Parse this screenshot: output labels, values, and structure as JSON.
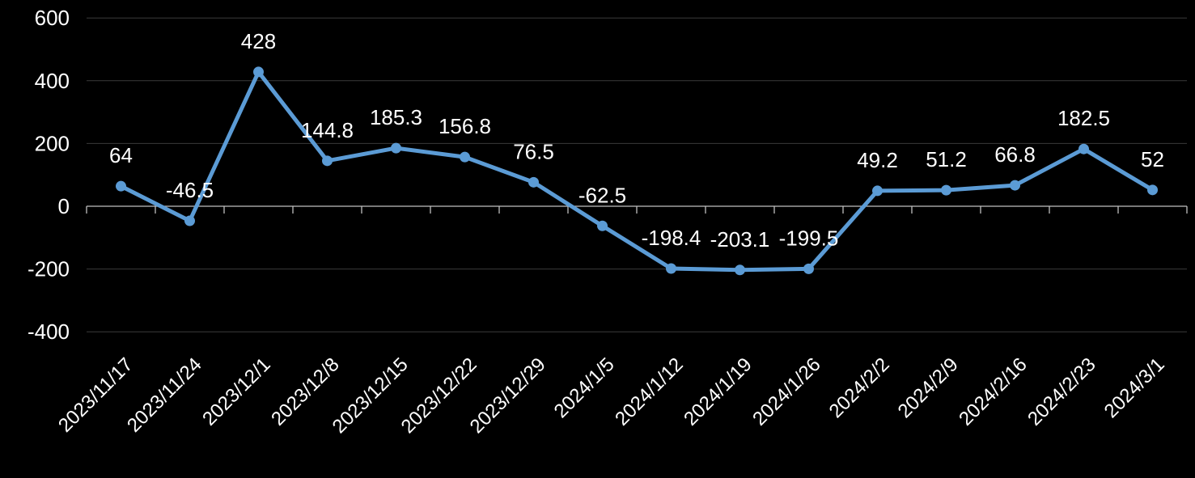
{
  "chart_data": {
    "type": "line",
    "title": "",
    "xlabel": "",
    "ylabel": "",
    "ylim": [
      -400,
      600
    ],
    "yticks": [
      "600",
      "400",
      "200",
      "0",
      "-200",
      "-400"
    ],
    "ytick_values": [
      600,
      400,
      200,
      0,
      -200,
      -400
    ],
    "categories": [
      "2023/11/17",
      "2023/11/24",
      "2023/12/1",
      "2023/12/8",
      "2023/12/15",
      "2023/12/22",
      "2023/12/29",
      "2024/1/5",
      "2024/1/12",
      "2024/1/19",
      "2024/1/26",
      "2024/2/2",
      "2024/2/9",
      "2024/2/16",
      "2024/2/23",
      "2024/3/1"
    ],
    "series": [
      {
        "values": [
          64,
          -46.5,
          428,
          144.8,
          185.3,
          156.8,
          76.5,
          -62.5,
          -198.4,
          -203.1,
          -199.5,
          49.2,
          51.2,
          66.8,
          182.5,
          52
        ],
        "labels": [
          "64",
          "-46.5",
          "428",
          "144.8",
          "185.3",
          "156.8",
          "76.5",
          "-62.5",
          "-198.4",
          "-203.1",
          "-199.5",
          "49.2",
          "51.2",
          "66.8",
          "182.5",
          "52"
        ],
        "color": "#5b9bd5"
      }
    ],
    "grid": true,
    "legend": "none",
    "background": "#000000",
    "text_color": "#ffffff"
  }
}
